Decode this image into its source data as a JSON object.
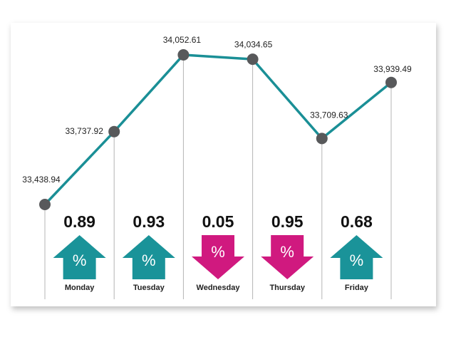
{
  "chart_data": {
    "type": "line",
    "values": [
      33438.94,
      33737.92,
      34052.61,
      34034.65,
      33709.63,
      33939.49
    ],
    "value_labels": [
      "33,438.94",
      "33,737.92",
      "34,052.61",
      "34,034.65",
      "33,709.63",
      "33,939.49"
    ],
    "color": "#1a8f96",
    "marker_color": "#58595b",
    "changes": {
      "categories": [
        "Monday",
        "Tuesday",
        "Wednesday",
        "Thursday",
        "Friday"
      ],
      "values": [
        0.89,
        0.93,
        0.05,
        0.95,
        0.68
      ],
      "directions": [
        "up",
        "up",
        "down",
        "down",
        "up"
      ],
      "colors": {
        "up": "#1a9399",
        "down": "#d0197f"
      },
      "symbol": "%"
    }
  }
}
